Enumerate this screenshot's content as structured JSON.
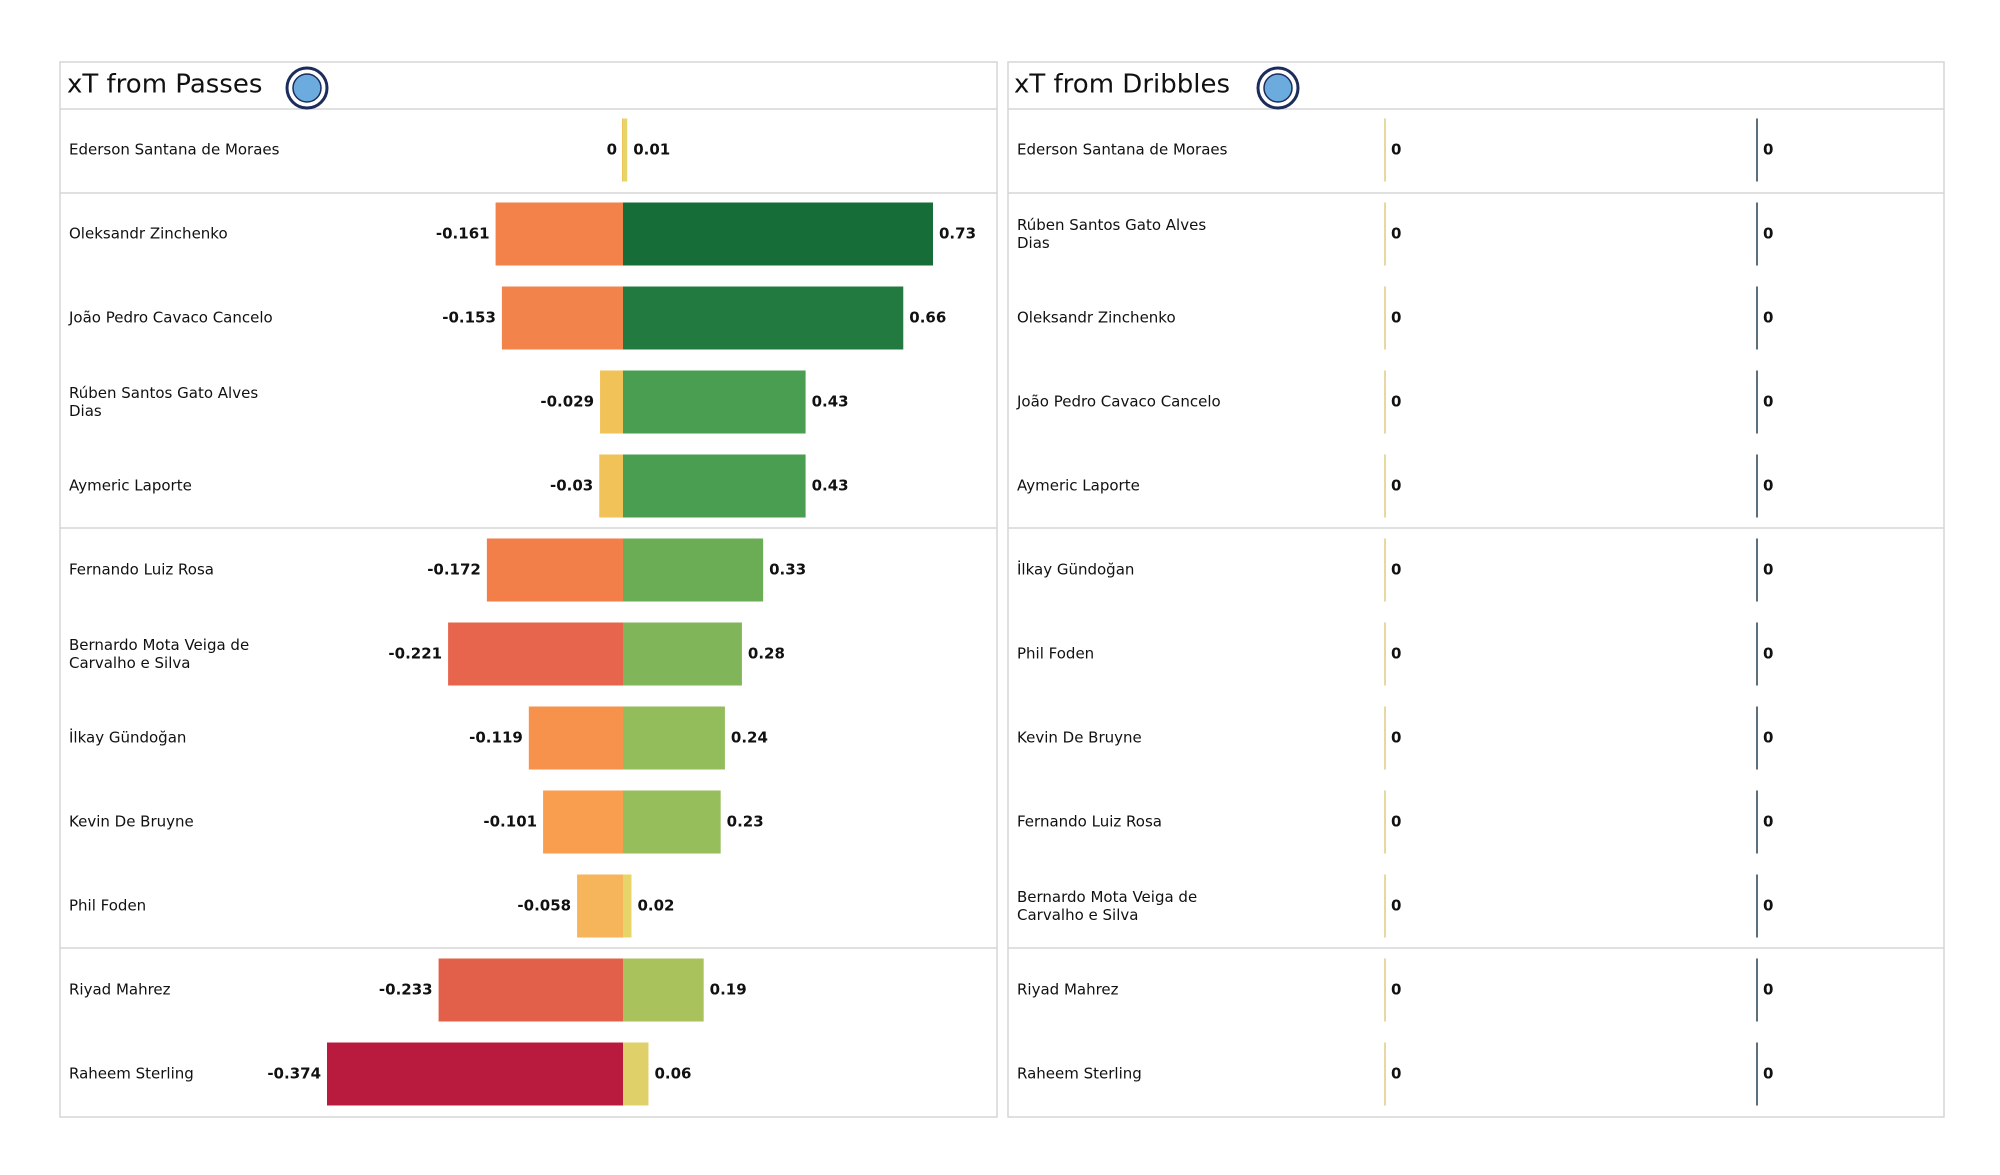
{
  "chart_data": [
    {
      "type": "bar",
      "title": "xT from Passes",
      "categories": [
        "Ederson Santana de Moraes",
        "Oleksandr Zinchenko",
        "João Pedro Cavaco Cancelo",
        "Rúben  Santos Gato Alves Dias",
        "Aymeric  Laporte",
        "Fernando Luiz Rosa",
        "Bernardo Mota Veiga de Carvalho e Silva",
        "İlkay Gündoğan",
        "Kevin De Bruyne",
        "Phil Foden",
        "Riyad Mahrez",
        "Raheem Sterling"
      ],
      "series": [
        {
          "values": [
            0,
            -0.161,
            -0.153,
            -0.029,
            -0.03,
            -0.172,
            -0.221,
            -0.119,
            -0.101,
            -0.058,
            -0.233,
            -0.374
          ],
          "colors": [
            "#eec55a",
            "#f2824a",
            "#f2844b",
            "#f0c257",
            "#f0c257",
            "#f27e49",
            "#e6654c",
            "#f7924c",
            "#f99e4f",
            "#f6b55a",
            "#e26049",
            "#b81b3d"
          ]
        },
        {
          "values": [
            0.01,
            0.73,
            0.66,
            0.43,
            0.43,
            0.33,
            0.28,
            0.24,
            0.23,
            0.02,
            0.19,
            0.06
          ],
          "colors": [
            "#e8d56a",
            "#166d38",
            "#237a40",
            "#4a9e52",
            "#4a9e52",
            "#6aad55",
            "#80b55a",
            "#93bd5a",
            "#96be5b",
            "#e8d56a",
            "#a9c25c",
            "#e0d06a"
          ]
        }
      ]
    },
    {
      "type": "bar",
      "title": "xT from Dribbles",
      "categories": [
        "Ederson Santana de Moraes",
        "Rúben  Santos Gato Alves Dias",
        "Oleksandr Zinchenko",
        "João Pedro Cavaco Cancelo",
        "Aymeric  Laporte",
        "İlkay Gündoğan",
        "Phil Foden",
        "Kevin De Bruyne",
        "Fernando Luiz Rosa",
        "Bernardo Mota Veiga de Carvalho e Silva",
        "Riyad Mahrez",
        "Raheem Sterling"
      ],
      "series": [
        {
          "values": [
            0,
            0,
            0,
            0,
            0,
            0,
            0,
            0,
            0,
            0,
            0,
            0
          ],
          "colors": [
            "#e6d8a0",
            "#e6d8a0",
            "#e6d8a0",
            "#e6d8a0",
            "#e6d8a0",
            "#e6d8a0",
            "#e6d8a0",
            "#e6d8a0",
            "#e6d8a0",
            "#e6d8a0",
            "#e6d8a0",
            "#e6d8a0"
          ]
        },
        {
          "values": [
            0,
            0,
            0,
            0,
            0,
            0,
            0,
            0,
            0,
            0,
            0,
            0
          ],
          "colors": [
            "#5b6f7c",
            "#5b6f7c",
            "#5b6f7c",
            "#5b6f7c",
            "#5b6f7c",
            "#5b6f7c",
            "#5b6f7c",
            "#5b6f7c",
            "#5b6f7c",
            "#5b6f7c",
            "#5b6f7c",
            "#5b6f7c"
          ]
        }
      ]
    }
  ]
}
